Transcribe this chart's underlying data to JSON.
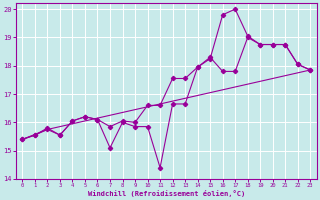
{
  "xlabel": "Windchill (Refroidissement éolien,°C)",
  "bg_color": "#c8eaea",
  "line_color": "#990099",
  "grid_color": "#ffffff",
  "xlim": [
    -0.5,
    23.5
  ],
  "ylim": [
    14,
    20.2
  ],
  "xticks": [
    0,
    1,
    2,
    3,
    4,
    5,
    6,
    7,
    8,
    9,
    10,
    11,
    12,
    13,
    14,
    15,
    16,
    17,
    18,
    19,
    20,
    21,
    22,
    23
  ],
  "yticks": [
    14,
    15,
    16,
    17,
    18,
    19,
    20
  ],
  "series1_x": [
    0,
    1,
    2,
    3,
    4,
    5,
    6,
    7,
    8,
    9,
    10,
    11,
    12,
    13,
    14,
    15,
    16,
    17,
    18,
    19,
    20,
    21,
    22,
    23
  ],
  "series1_y": [
    15.4,
    15.55,
    15.8,
    15.55,
    16.05,
    16.2,
    16.1,
    15.1,
    16.0,
    15.85,
    15.85,
    14.4,
    16.65,
    16.65,
    17.95,
    18.3,
    17.8,
    17.8,
    19.0,
    18.75,
    18.75,
    18.75,
    18.05,
    17.85
  ],
  "series2_x": [
    0,
    1,
    2,
    3,
    4,
    5,
    6,
    7,
    8,
    9,
    10,
    11,
    12,
    13,
    14,
    15,
    16,
    17,
    18,
    19,
    20,
    21,
    22,
    23
  ],
  "series2_y": [
    15.4,
    15.55,
    15.75,
    15.55,
    16.05,
    16.2,
    16.1,
    15.85,
    16.05,
    16.0,
    16.6,
    16.6,
    17.55,
    17.55,
    17.95,
    18.25,
    19.8,
    20.0,
    19.05,
    18.75,
    18.75,
    18.75,
    18.05,
    17.85
  ],
  "series3_x": [
    0,
    2,
    23
  ],
  "series3_y": [
    15.4,
    15.75,
    17.85
  ]
}
